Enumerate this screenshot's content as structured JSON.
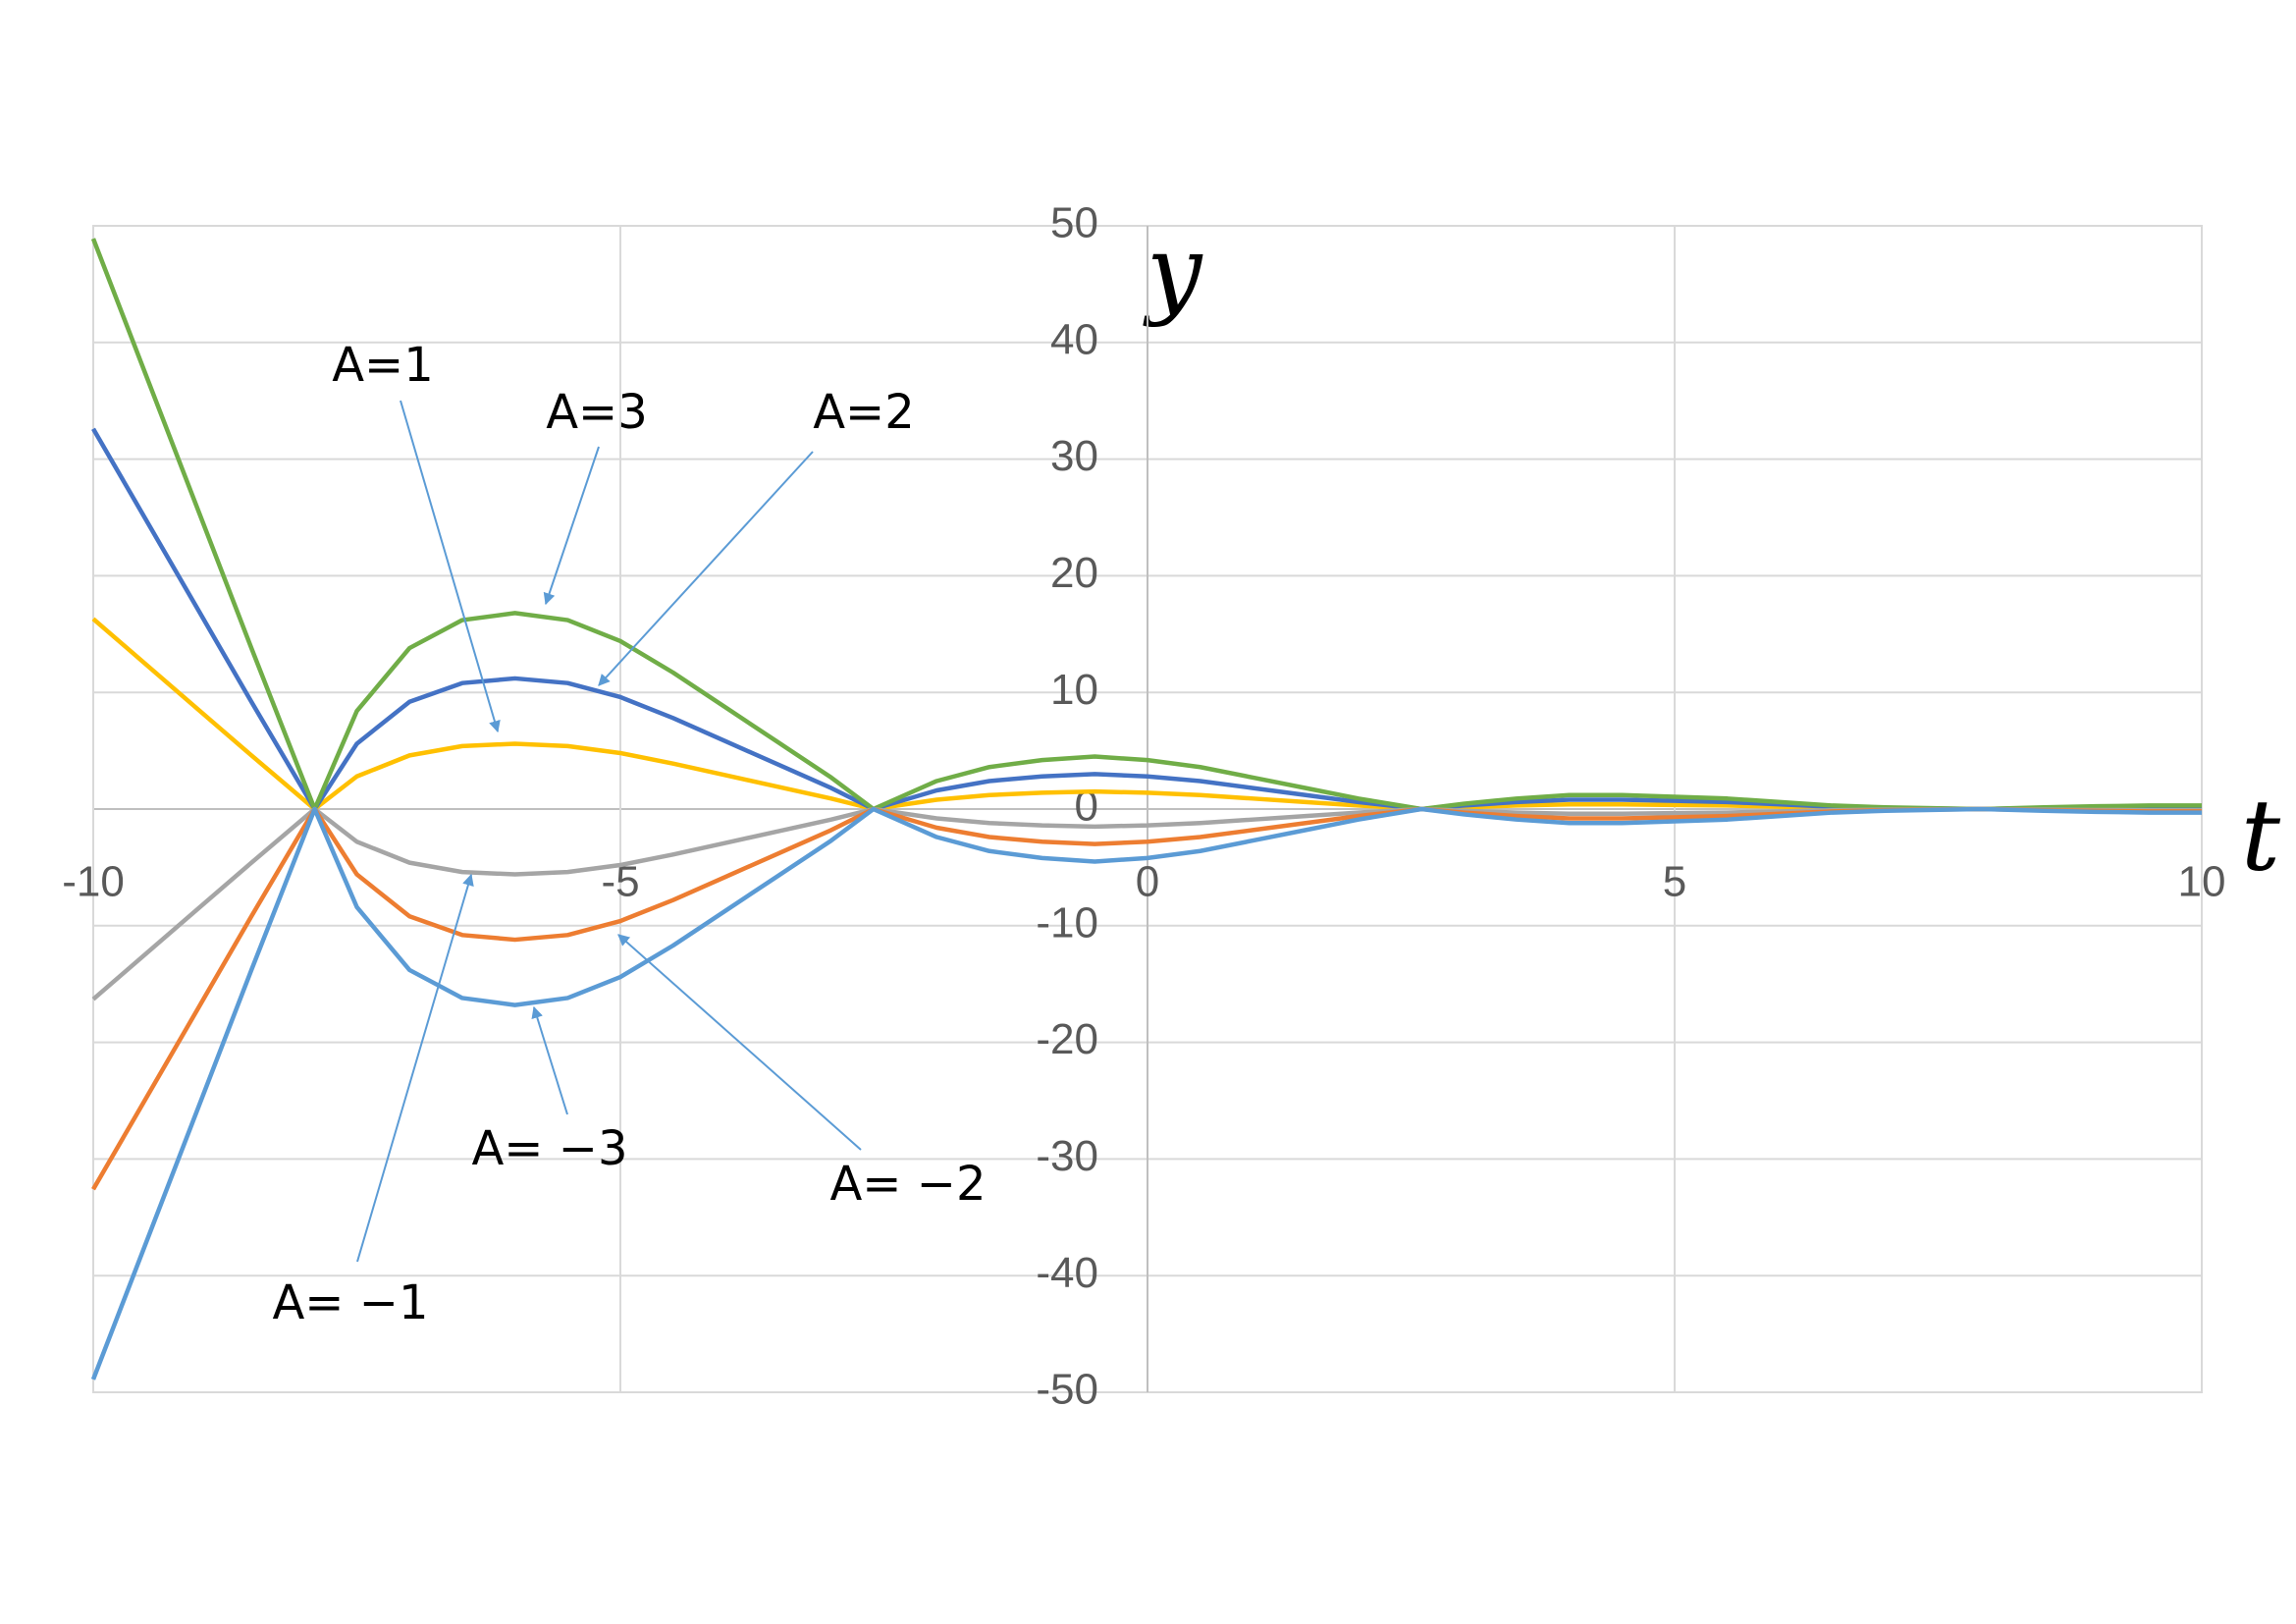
{
  "chart_data": {
    "type": "line",
    "x_label": "t",
    "y_label": "y",
    "x": [
      -10,
      -9.5,
      -9,
      -8.5,
      -7.9,
      -7.5,
      -7,
      -6.5,
      -6,
      -5.5,
      -5,
      -4.5,
      -4,
      -3.5,
      -3,
      -2.6,
      -2,
      -1.5,
      -1,
      -0.5,
      0,
      0.5,
      1,
      1.5,
      2,
      2.6,
      3,
      3.5,
      4,
      4.5,
      5,
      5.5,
      6,
      6.5,
      7,
      7.9,
      8.5,
      9,
      9.5,
      10
    ],
    "series": [
      {
        "color": "#ffc000",
        "values": [
          16.3,
          12.4,
          8.5,
          4.6,
          0,
          2.8,
          4.6,
          5.4,
          5.6,
          5.4,
          4.8,
          3.9,
          2.9,
          1.9,
          0.9,
          0,
          0.8,
          1.2,
          1.4,
          1.5,
          1.4,
          1.2,
          0.9,
          0.6,
          0.3,
          0,
          0.15,
          0.3,
          0.4,
          0.4,
          0.35,
          0.3,
          0.2,
          0.1,
          0.05,
          0,
          0.05,
          0.08,
          0.1,
          0.1
        ]
      },
      {
        "color": "#4472c4",
        "values": [
          32.6,
          24.8,
          17,
          9.2,
          0,
          5.6,
          9.2,
          10.8,
          11.2,
          10.8,
          9.6,
          7.8,
          5.8,
          3.8,
          1.8,
          0,
          1.6,
          2.4,
          2.8,
          3,
          2.8,
          2.4,
          1.8,
          1.2,
          0.6,
          0,
          0.3,
          0.6,
          0.8,
          0.8,
          0.7,
          0.6,
          0.4,
          0.2,
          0.1,
          0,
          0.1,
          0.16,
          0.2,
          0.2
        ]
      },
      {
        "color": "#70ad47",
        "values": [
          48.9,
          37.2,
          25.5,
          13.8,
          0,
          8.4,
          13.8,
          16.2,
          16.8,
          16.2,
          14.4,
          11.7,
          8.7,
          5.7,
          2.7,
          0,
          2.4,
          3.6,
          4.2,
          4.5,
          4.2,
          3.6,
          2.7,
          1.8,
          0.9,
          0,
          0.45,
          0.9,
          1.2,
          1.2,
          1.05,
          0.9,
          0.6,
          0.3,
          0.15,
          0,
          0.15,
          0.24,
          0.3,
          0.3
        ]
      },
      {
        "color": "#a5a5a5",
        "values": [
          -16.3,
          -12.4,
          -8.5,
          -4.6,
          0,
          -2.8,
          -4.6,
          -5.4,
          -5.6,
          -5.4,
          -4.8,
          -3.9,
          -2.9,
          -1.9,
          -0.9,
          0,
          -0.8,
          -1.2,
          -1.4,
          -1.5,
          -1.4,
          -1.2,
          -0.9,
          -0.6,
          -0.3,
          0,
          -0.15,
          -0.3,
          -0.4,
          -0.4,
          -0.35,
          -0.3,
          -0.2,
          -0.1,
          -0.05,
          0,
          -0.05,
          -0.08,
          -0.1,
          -0.1
        ]
      },
      {
        "color": "#ed7d31",
        "values": [
          -32.6,
          -24.8,
          -17,
          -9.2,
          0,
          -5.6,
          -9.2,
          -10.8,
          -11.2,
          -10.8,
          -9.6,
          -7.8,
          -5.8,
          -3.8,
          -1.8,
          0,
          -1.6,
          -2.4,
          -2.8,
          -3,
          -2.8,
          -2.4,
          -1.8,
          -1.2,
          -0.6,
          0,
          -0.3,
          -0.6,
          -0.8,
          -0.8,
          -0.7,
          -0.6,
          -0.4,
          -0.2,
          -0.1,
          0,
          -0.1,
          -0.16,
          -0.2,
          -0.2
        ]
      },
      {
        "color": "#5b9bd5",
        "values": [
          -48.9,
          -37.2,
          -25.5,
          -13.8,
          0,
          -8.4,
          -13.8,
          -16.2,
          -16.8,
          -16.2,
          -14.4,
          -11.7,
          -8.7,
          -5.7,
          -2.7,
          0,
          -2.4,
          -3.6,
          -4.2,
          -4.5,
          -4.2,
          -3.6,
          -2.7,
          -1.8,
          -0.9,
          0,
          -0.45,
          -0.9,
          -1.2,
          -1.2,
          -1.05,
          -0.9,
          -0.6,
          -0.3,
          -0.15,
          0,
          -0.15,
          -0.24,
          -0.3,
          -0.3
        ]
      }
    ],
    "annotations": [
      "A=1",
      "A=3",
      "A=2",
      "A= −3",
      "A= −2",
      "A= −1"
    ],
    "xlim": [
      -10,
      10
    ],
    "xticks": [
      -10,
      -5,
      0,
      5,
      10
    ],
    "ylim": [
      -50,
      50
    ],
    "yticks": [
      -50,
      -40,
      -30,
      -20,
      -10,
      0,
      10,
      20,
      30,
      40,
      50
    ],
    "grid": true
  }
}
